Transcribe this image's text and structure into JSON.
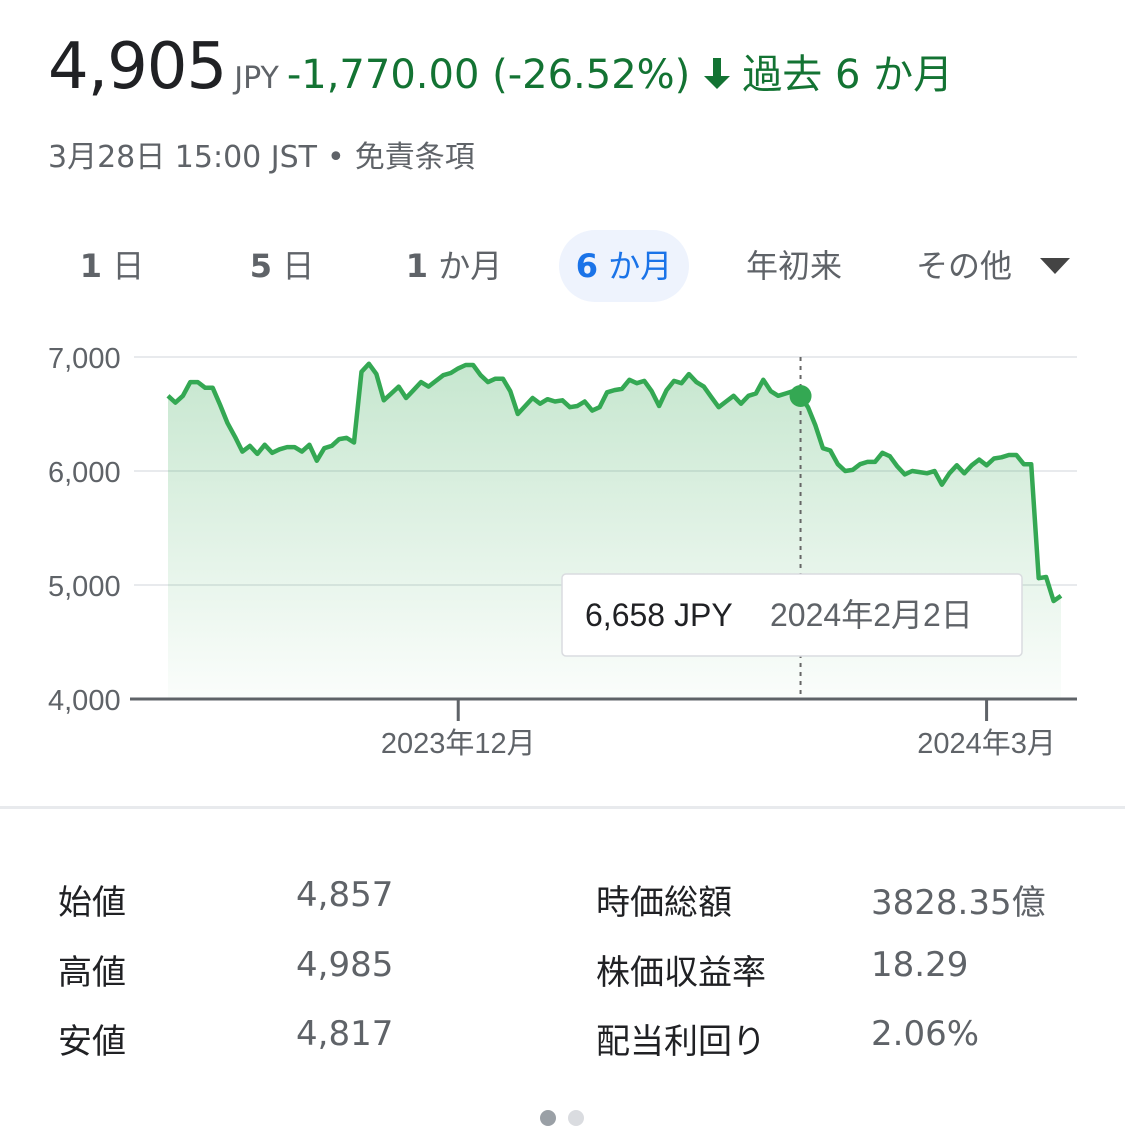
{
  "header": {
    "price": "4,905",
    "currency": "JPY",
    "change": "-1,770.00 (-26.52%)",
    "period": "過去 6 か月",
    "date": "3月28日 15:00 JST",
    "separator": "•",
    "disclaimer": "免責条項",
    "arrow_icon": "arrow-down-icon",
    "change_color": "#137333"
  },
  "tabs": [
    {
      "num": "1",
      "unit": "日"
    },
    {
      "num": "5",
      "unit": "日"
    },
    {
      "num": "1",
      "unit": "か月"
    },
    {
      "num": "6",
      "unit": "か月",
      "active": true
    },
    {
      "num": "",
      "unit": "年初来"
    },
    {
      "num": "",
      "unit": "その他"
    }
  ],
  "chart_data": {
    "type": "area",
    "title": "",
    "xlabel": "",
    "ylabel": "",
    "ylim": [
      4000,
      7000
    ],
    "yticks": [
      "7,000",
      "6,000",
      "5,000",
      "4,000"
    ],
    "xticks": [
      "2023年12月",
      "2024年3月"
    ],
    "grid": true,
    "line_color": "#34a853",
    "series": [
      {
        "values": [
          6660,
          6600,
          6660,
          6780,
          6780,
          6730,
          6730,
          6580,
          6420,
          6300,
          6170,
          6220,
          6150,
          6230,
          6160,
          6190,
          6210,
          6210,
          6170,
          6230,
          6090,
          6200,
          6220,
          6280,
          6290,
          6250,
          6870,
          6940,
          6850,
          6620,
          6680,
          6740,
          6640,
          6710,
          6780,
          6740,
          6790,
          6840,
          6860,
          6900,
          6930,
          6930,
          6840,
          6780,
          6810,
          6810,
          6700,
          6500,
          6570,
          6640,
          6590,
          6630,
          6610,
          6620,
          6560,
          6570,
          6610,
          6530,
          6560,
          6690,
          6710,
          6720,
          6800,
          6770,
          6790,
          6700,
          6570,
          6710,
          6790,
          6770,
          6850,
          6780,
          6740,
          6650,
          6560,
          6610,
          6660,
          6590,
          6660,
          6680,
          6800,
          6700,
          6660,
          6680,
          6700,
          6658,
          6560,
          6400,
          6200,
          6180,
          6060,
          6000,
          6010,
          6060,
          6080,
          6080,
          6160,
          6130,
          6040,
          5970,
          6000,
          5990,
          5980,
          6000,
          5880,
          5980,
          6050,
          5980,
          6050,
          6100,
          6050,
          6110,
          6120,
          6140,
          6140,
          6060,
          6060,
          5060,
          5070,
          4860,
          4905
        ]
      }
    ],
    "tooltip": {
      "value": "6,658 JPY",
      "date": "2024年2月2日",
      "index": 85
    }
  },
  "stats": [
    {
      "label": "始値",
      "value": "4,857"
    },
    {
      "label": "高値",
      "value": "4,985"
    },
    {
      "label": "安値",
      "value": "4,817"
    },
    {
      "label": "時価総額",
      "value": "3828.35億"
    },
    {
      "label": "株価収益率",
      "value": "18.29"
    },
    {
      "label": "配当利回り",
      "value": "2.06%"
    }
  ]
}
